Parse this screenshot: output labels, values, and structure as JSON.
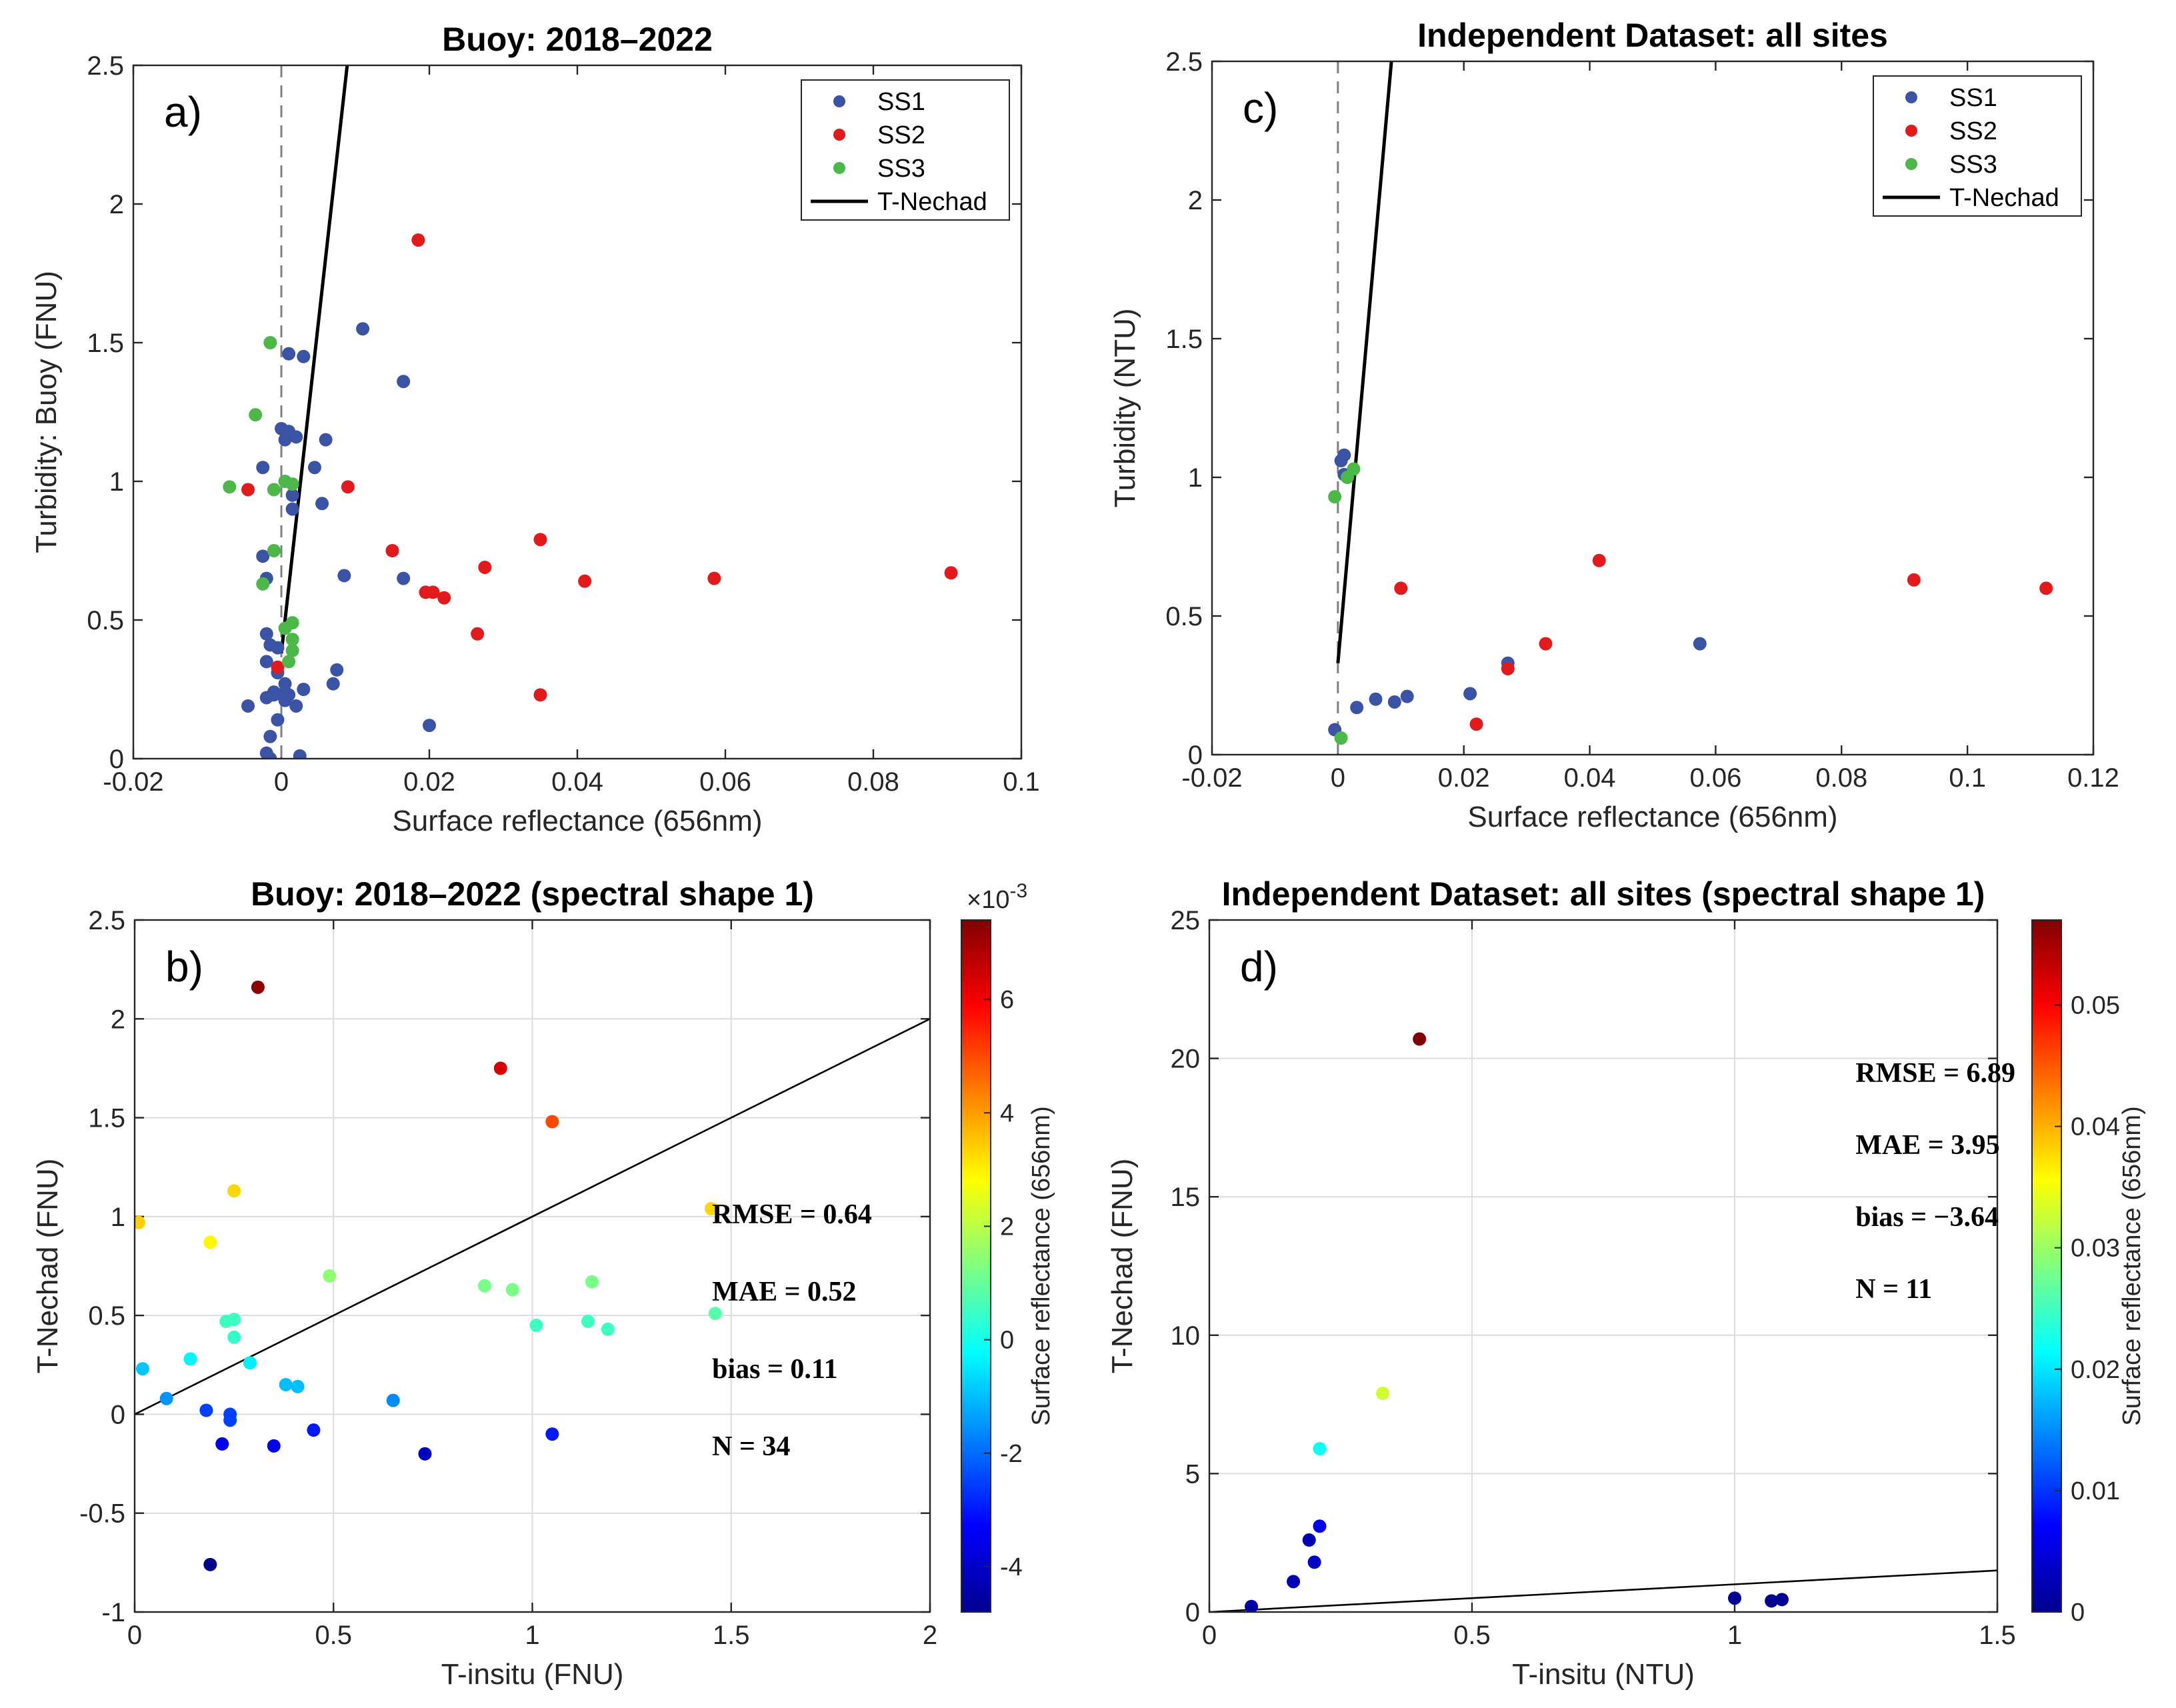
{
  "chart_data": [
    {
      "id": "a",
      "type": "scatter",
      "panel_label": "a)",
      "title": "Buoy: 2018–2022",
      "xlabel": "Surface reflectance (656nm)",
      "ylabel": "Turbidity: Buoy (FNU)",
      "xlim": [
        -0.02,
        0.1
      ],
      "ylim": [
        0,
        2.5
      ],
      "xticks": [
        -0.02,
        0,
        0.02,
        0.04,
        0.06,
        0.08,
        0.1
      ],
      "xtick_labels": [
        "-0.02",
        "0",
        "0.02",
        "0.04",
        "0.06",
        "0.08",
        "0.1"
      ],
      "yticks": [
        0,
        0.5,
        1,
        1.5,
        2,
        2.5
      ],
      "ytick_labels": [
        "0",
        "0.5",
        "1",
        "1.5",
        "2",
        "2.5"
      ],
      "grid": false,
      "legend_position": "top-right",
      "reference_vline_x": 0,
      "series": [
        {
          "name": "SS1",
          "color": "#3a53a4",
          "points": [
            [
              -0.0045,
              0.19
            ],
            [
              -0.002,
              0.22
            ],
            [
              -0.001,
              0.24
            ],
            [
              0.001,
              0.23
            ],
            [
              0.002,
              0.19
            ],
            [
              -0.002,
              0.35
            ],
            [
              -0.0015,
              0.41
            ],
            [
              0.0005,
              0.21
            ],
            [
              0.003,
              0.25
            ],
            [
              -0.002,
              0.45
            ],
            [
              -0.0005,
              0.4
            ],
            [
              -0.002,
              0.65
            ],
            [
              -0.0025,
              0.73
            ],
            [
              -0.0025,
              1.05
            ],
            [
              0,
              1.19
            ],
            [
              0.0005,
              1.15
            ],
            [
              0.001,
              1.18
            ],
            [
              0.002,
              1.16
            ],
            [
              0.001,
              1.46
            ],
            [
              0.003,
              1.45
            ],
            [
              0.0015,
              0.95
            ],
            [
              0.0015,
              0.9
            ],
            [
              0.0045,
              1.05
            ],
            [
              0.0055,
              0.92
            ],
            [
              0.006,
              1.15
            ],
            [
              0.011,
              1.55
            ],
            [
              0.0165,
              1.36
            ],
            [
              0.0085,
              0.66
            ],
            [
              0.0165,
              0.65
            ],
            [
              0.007,
              0.27
            ],
            [
              0.0075,
              0.32
            ],
            [
              0.02,
              0.12
            ],
            [
              -0.0005,
              0.14
            ],
            [
              -0.0015,
              0.08
            ],
            [
              -0.002,
              0.02
            ],
            [
              -0.0015,
              0
            ],
            [
              0.0025,
              0.01
            ],
            [
              -0.0005,
              0.31
            ],
            [
              0.0005,
              0.27
            ],
            [
              -0.001,
              0.23
            ],
            [
              0.0005,
              0.24
            ]
          ]
        },
        {
          "name": "SS2",
          "color": "#e31a1c",
          "points": [
            [
              0.0185,
              1.87
            ],
            [
              0.009,
              0.98
            ],
            [
              -0.0045,
              0.97
            ],
            [
              -0.0005,
              0.33
            ],
            [
              0.015,
              0.75
            ],
            [
              0.0195,
              0.6
            ],
            [
              0.0205,
              0.6
            ],
            [
              0.022,
              0.58
            ],
            [
              0.0275,
              0.69
            ],
            [
              0.0265,
              0.45
            ],
            [
              0.035,
              0.79
            ],
            [
              0.035,
              0.23
            ],
            [
              0.041,
              0.64
            ],
            [
              0.0585,
              0.65
            ],
            [
              0.0905,
              0.67
            ]
          ]
        },
        {
          "name": "SS3",
          "color": "#4cb848",
          "points": [
            [
              -0.0015,
              1.5
            ],
            [
              -0.0035,
              1.24
            ],
            [
              -0.007,
              0.98
            ],
            [
              -0.001,
              0.97
            ],
            [
              0.0005,
              1.0
            ],
            [
              0.0015,
              0.99
            ],
            [
              -0.001,
              0.75
            ],
            [
              -0.0025,
              0.63
            ],
            [
              0.0015,
              0.49
            ],
            [
              0.0015,
              0.43
            ],
            [
              0.0015,
              0.39
            ],
            [
              0.001,
              0.35
            ],
            [
              0.0005,
              0.47
            ]
          ]
        },
        {
          "name": "T-Nechad",
          "color": "#000000",
          "line": [
            [
              0,
              0.38
            ],
            [
              0.0089,
              2.5
            ]
          ]
        }
      ]
    },
    {
      "id": "c",
      "type": "scatter",
      "panel_label": "c)",
      "title": "Independent Dataset: all sites",
      "xlabel": "Surface reflectance (656nm)",
      "ylabel": "Turbidity (NTU)",
      "xlim": [
        -0.02,
        0.12
      ],
      "ylim": [
        0,
        2.5
      ],
      "xticks": [
        -0.02,
        0,
        0.02,
        0.04,
        0.06,
        0.08,
        0.1,
        0.12
      ],
      "xtick_labels": [
        "-0.02",
        "0",
        "0.02",
        "0.04",
        "0.06",
        "0.08",
        "0.1",
        "0.12"
      ],
      "yticks": [
        0,
        0.5,
        1,
        1.5,
        2,
        2.5
      ],
      "ytick_labels": [
        "0",
        "0.5",
        "1",
        "1.5",
        "2",
        "2.5"
      ],
      "grid": false,
      "legend_position": "top-right",
      "reference_vline_x": 0,
      "series": [
        {
          "name": "SS1",
          "color": "#3a53a4",
          "points": [
            [
              -0.0005,
              0.09
            ],
            [
              0.0005,
              1.06
            ],
            [
              0.001,
              1.08
            ],
            [
              0.001,
              1.01
            ],
            [
              0.003,
              0.17
            ],
            [
              0.006,
              0.2
            ],
            [
              0.009,
              0.19
            ],
            [
              0.011,
              0.21
            ],
            [
              0.021,
              0.22
            ],
            [
              0.027,
              0.33
            ],
            [
              0.0575,
              0.4
            ]
          ]
        },
        {
          "name": "SS2",
          "color": "#e31a1c",
          "points": [
            [
              0.01,
              0.6
            ],
            [
              0.022,
              0.11
            ],
            [
              0.027,
              0.31
            ],
            [
              0.033,
              0.4
            ],
            [
              0.0415,
              0.7
            ],
            [
              0.0915,
              0.63
            ],
            [
              0.1125,
              0.6
            ]
          ]
        },
        {
          "name": "SS3",
          "color": "#4cb848",
          "points": [
            [
              -0.0005,
              0.93
            ],
            [
              0.0015,
              1.0
            ],
            [
              0.0025,
              1.03
            ],
            [
              0.0005,
              0.06
            ]
          ]
        },
        {
          "name": "T-Nechad",
          "color": "#000000",
          "line": [
            [
              0,
              0.33
            ],
            [
              0.0085,
              2.5
            ]
          ]
        }
      ]
    },
    {
      "id": "b",
      "type": "scatter",
      "panel_label": "b)",
      "title": "Buoy: 2018–2022 (spectral shape 1)",
      "xlabel": "T-insitu (FNU)",
      "ylabel": "T-Nechad (FNU)",
      "xlim": [
        0,
        2
      ],
      "ylim": [
        -1,
        2.5
      ],
      "xticks": [
        0,
        0.5,
        1,
        1.5,
        2
      ],
      "xtick_labels": [
        "0",
        "0.5",
        "1",
        "1.5",
        "2"
      ],
      "yticks": [
        -1,
        -0.5,
        0,
        0.5,
        1,
        1.5,
        2,
        2.5
      ],
      "ytick_labels": [
        "-1",
        "-0.5",
        "0",
        "0.5",
        "1",
        "1.5",
        "2",
        "2.5"
      ],
      "grid": true,
      "one_to_one_line": true,
      "colorbar": {
        "label": "Surface reflectance (656nm)",
        "range": [
          -0.0048,
          0.0074
        ],
        "ticks": [
          -0.004,
          -0.002,
          0,
          0.002,
          0.004,
          0.006
        ],
        "tick_labels": [
          "-4",
          "-2",
          "0",
          "2",
          "4",
          "6"
        ],
        "exponent_prefix": "×10",
        "exponent": "-3"
      },
      "stats": {
        "rmse": "RMSE = 0.64",
        "mae": "MAE = 0.52",
        "bias": "bias = 0.11",
        "n": "N = 34"
      },
      "points": [
        [
          0.31,
          2.16,
          0.0072
        ],
        [
          0.92,
          1.75,
          0.0063
        ],
        [
          1.05,
          1.48,
          0.005
        ],
        [
          0.25,
          1.13,
          0.0033
        ],
        [
          1.45,
          1.04,
          0.0033
        ],
        [
          0.01,
          0.97,
          0.0034
        ],
        [
          0.19,
          0.87,
          0.0029
        ],
        [
          0.49,
          0.7,
          0.0015
        ],
        [
          0.88,
          0.65,
          0.0012
        ],
        [
          0.95,
          0.63,
          0.0012
        ],
        [
          1.15,
          0.67,
          0.0012
        ],
        [
          1.46,
          0.51,
          0.0008
        ],
        [
          1.14,
          0.47,
          0.0005
        ],
        [
          1.01,
          0.45,
          0.0005
        ],
        [
          1.19,
          0.43,
          0.0005
        ],
        [
          0.23,
          0.47,
          0.0005
        ],
        [
          0.25,
          0.48,
          0.0005
        ],
        [
          0.25,
          0.39,
          0.0004
        ],
        [
          0.14,
          0.28,
          -0.0003
        ],
        [
          0.29,
          0.26,
          -0.0004
        ],
        [
          0.02,
          0.23,
          -0.0009
        ],
        [
          0.38,
          0.15,
          -0.001
        ],
        [
          0.41,
          0.14,
          -0.001
        ],
        [
          0.08,
          0.08,
          -0.0015
        ],
        [
          0.65,
          0.07,
          -0.0016
        ],
        [
          0.18,
          0.02,
          -0.0025
        ],
        [
          0.24,
          0.0,
          -0.0025
        ],
        [
          0.24,
          -0.03,
          -0.0025
        ],
        [
          0.45,
          -0.08,
          -0.003
        ],
        [
          0.22,
          -0.15,
          -0.0035
        ],
        [
          0.35,
          -0.16,
          -0.0035
        ],
        [
          0.73,
          -0.2,
          -0.004
        ],
        [
          1.05,
          -0.1,
          -0.003
        ],
        [
          0.19,
          -0.76,
          -0.0047
        ]
      ]
    },
    {
      "id": "d",
      "type": "scatter",
      "panel_label": "d)",
      "title": "Independent Dataset: all sites (spectral shape 1)",
      "xlabel": "T-insitu (NTU)",
      "ylabel": "T-Nechad (FNU)",
      "xlim": [
        0,
        1.5
      ],
      "ylim": [
        0,
        25
      ],
      "xticks": [
        0,
        0.5,
        1,
        1.5
      ],
      "xtick_labels": [
        "0",
        "0.5",
        "1",
        "1.5"
      ],
      "yticks": [
        0,
        5,
        10,
        15,
        20,
        25
      ],
      "ytick_labels": [
        "0",
        "5",
        "10",
        "15",
        "20",
        "25"
      ],
      "grid": true,
      "one_to_one_line": true,
      "colorbar": {
        "label": "Surface reflectance (656nm)",
        "range": [
          0,
          0.057
        ],
        "ticks": [
          0,
          0.01,
          0.02,
          0.03,
          0.04,
          0.05
        ],
        "tick_labels": [
          "0",
          "0.01",
          "0.02",
          "0.03",
          "0.04",
          "0.05"
        ]
      },
      "stats": {
        "rmse": "RMSE = 6.89",
        "mae": "MAE = 3.95",
        "bias": "bias = −3.64",
        "n": "N = 11"
      },
      "points": [
        [
          0.4,
          20.7,
          0.057
        ],
        [
          0.33,
          7.9,
          0.033
        ],
        [
          0.21,
          5.9,
          0.022
        ],
        [
          0.21,
          3.1,
          0.006
        ],
        [
          0.19,
          2.6,
          0.003
        ],
        [
          0.2,
          1.8,
          0.004
        ],
        [
          0.16,
          1.1,
          0.003
        ],
        [
          0.08,
          0.2,
          0.002
        ],
        [
          1.0,
          0.5,
          0.001
        ],
        [
          1.07,
          0.4,
          0.001
        ],
        [
          1.09,
          0.45,
          0.001
        ]
      ]
    }
  ]
}
